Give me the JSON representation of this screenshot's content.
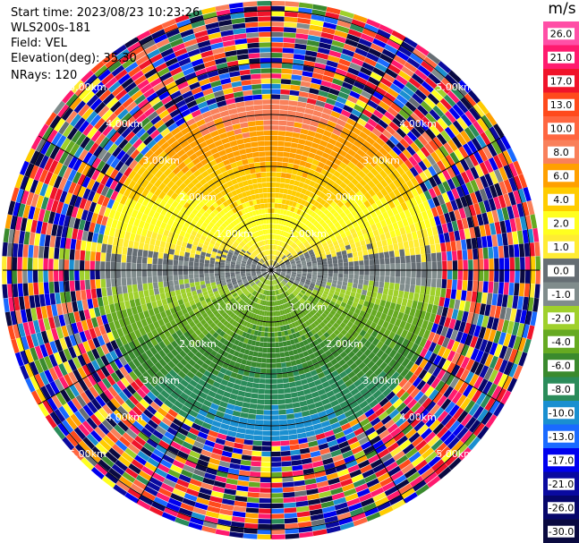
{
  "header": {
    "start_time": "Start time: 2023/08/23 10:23:26",
    "instrument": "WLS200s-181",
    "field": "Field: VEL",
    "elevation": "Elevation(deg): 35.30",
    "nrays": "NRays: 120"
  },
  "colorbar": {
    "unit": "m/s",
    "entries": [
      {
        "label": "26.0",
        "color": "#ff4fa6"
      },
      {
        "label": "21.0",
        "color": "#ff1a6e"
      },
      {
        "label": "17.0",
        "color": "#f0142a"
      },
      {
        "label": "13.0",
        "color": "#ff4a1c"
      },
      {
        "label": "10.0",
        "color": "#ff6640"
      },
      {
        "label": "8.0",
        "color": "#f9805a"
      },
      {
        "label": "6.0",
        "color": "#ffa000"
      },
      {
        "label": "4.0",
        "color": "#ffcc00"
      },
      {
        "label": "2.0",
        "color": "#ffff1f"
      },
      {
        "label": "1.0",
        "color": "#ffec33"
      },
      {
        "label": "0.0",
        "color": "#666e74"
      },
      {
        "label": "-1.0",
        "color": "#808c8c"
      },
      {
        "label": "-2.0",
        "color": "#9fd02c"
      },
      {
        "label": "-4.0",
        "color": "#66aa22"
      },
      {
        "label": "-6.0",
        "color": "#3a8a2e"
      },
      {
        "label": "-8.0",
        "color": "#2b8c5a"
      },
      {
        "label": "-10.0",
        "color": "#1a8fd0"
      },
      {
        "label": "-13.0",
        "color": "#1a6aff"
      },
      {
        "label": "-17.0",
        "color": "#0000ee"
      },
      {
        "label": "-21.0",
        "color": "#0a0aa0"
      },
      {
        "label": "-26.0",
        "color": "#06066a"
      },
      {
        "label": "-30.0",
        "color": "#0a0a40"
      }
    ]
  },
  "chart_data": {
    "type": "ppi_polar",
    "field": "VEL",
    "units": "m/s",
    "elevation_deg": 35.3,
    "n_rays": 120,
    "range_rings_km": [
      1.0,
      2.0,
      3.0,
      4.0,
      5.0
    ],
    "range_labels": [
      "1.00km",
      "2.00km",
      "3.00km",
      "4.00km",
      "5.00km"
    ],
    "spokes_deg": [
      0,
      30,
      60,
      90,
      120,
      150
    ],
    "vmin": -30.0,
    "vmax": 26.0,
    "structure": {
      "north_half": "positive velocities: ~1-2 m/s near center, 2-4 m/s mid, 6-8 m/s at 2-3 km",
      "south_half": "negative velocities: ~-1 to -2 m/s near center, -4 m/s mid, -6 to -8 m/s at 2-3 km",
      "beyond_km": 3.3,
      "beyond_description": "noisy, values span full color range"
    }
  }
}
